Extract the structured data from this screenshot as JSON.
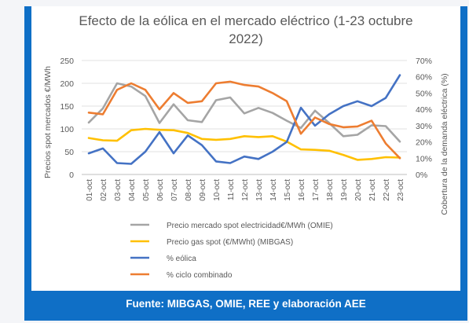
{
  "chart_data": {
    "type": "line",
    "title_lines": [
      "Efecto de la eólica en el mercado eléctrico (1-23 octubre",
      "2022)"
    ],
    "ylabel": "Precios spot mercados €/MWh",
    "y2label": "Cobertura de la demanda eléctrica (%)",
    "ylim": [
      0,
      250
    ],
    "y_ticks": [
      0,
      50,
      100,
      150,
      200,
      250
    ],
    "y2lim": [
      0,
      70
    ],
    "y2_ticks": [
      "0%",
      "10%",
      "20%",
      "30%",
      "40%",
      "50%",
      "60%",
      "70%"
    ],
    "grid": true,
    "legend_position": "bottom",
    "categories": [
      "01-oct",
      "02-oct",
      "03-oct",
      "04-oct",
      "05-oct",
      "06-oct",
      "07-oct",
      "08-oct",
      "09-oct",
      "10-oct",
      "11-oct",
      "12-oct",
      "13-oct",
      "14-oct",
      "15-oct",
      "16-oct",
      "17-oct",
      "18-oct",
      "19-oct",
      "20-oct",
      "21-oct",
      "22-oct",
      "23-oct"
    ],
    "series": [
      {
        "name": "Precio mercado spot electricidad€/MWh (OMIE)",
        "axis": "left",
        "color": "#a5a5a5",
        "values": [
          114,
          145,
          200,
          193,
          172,
          113,
          154,
          119,
          115,
          163,
          169,
          134,
          146,
          135,
          118,
          102,
          140,
          113,
          84,
          87,
          108,
          106,
          72
        ]
      },
      {
        "name": "Precio gas spot (€/MWht) (MIBGAS)",
        "axis": "left",
        "color": "#ffc000",
        "values": [
          80,
          75,
          74,
          97,
          100,
          98,
          97,
          91,
          78,
          76,
          78,
          84,
          82,
          84,
          72,
          55,
          54,
          52,
          43,
          32,
          34,
          38,
          37
        ]
      },
      {
        "name": "% eólica",
        "axis": "right",
        "color": "#4472c4",
        "values": [
          13,
          16,
          7,
          6.5,
          14,
          26,
          13,
          24,
          18,
          8,
          7,
          11,
          9.5,
          14,
          20,
          41,
          30,
          37,
          42,
          45,
          42,
          47,
          61
        ]
      },
      {
        "name": "% ciclo combinado",
        "axis": "right",
        "color": "#ed7d31",
        "values": [
          38,
          37,
          52,
          56,
          52,
          40,
          50,
          44,
          45,
          56,
          57,
          55,
          54,
          50,
          45,
          25,
          35,
          31,
          29,
          29.5,
          33,
          19,
          10
        ]
      }
    ]
  },
  "footer": {
    "source": "Fuente: MIBGAS, OMIE, REE y elaboración AEE"
  }
}
